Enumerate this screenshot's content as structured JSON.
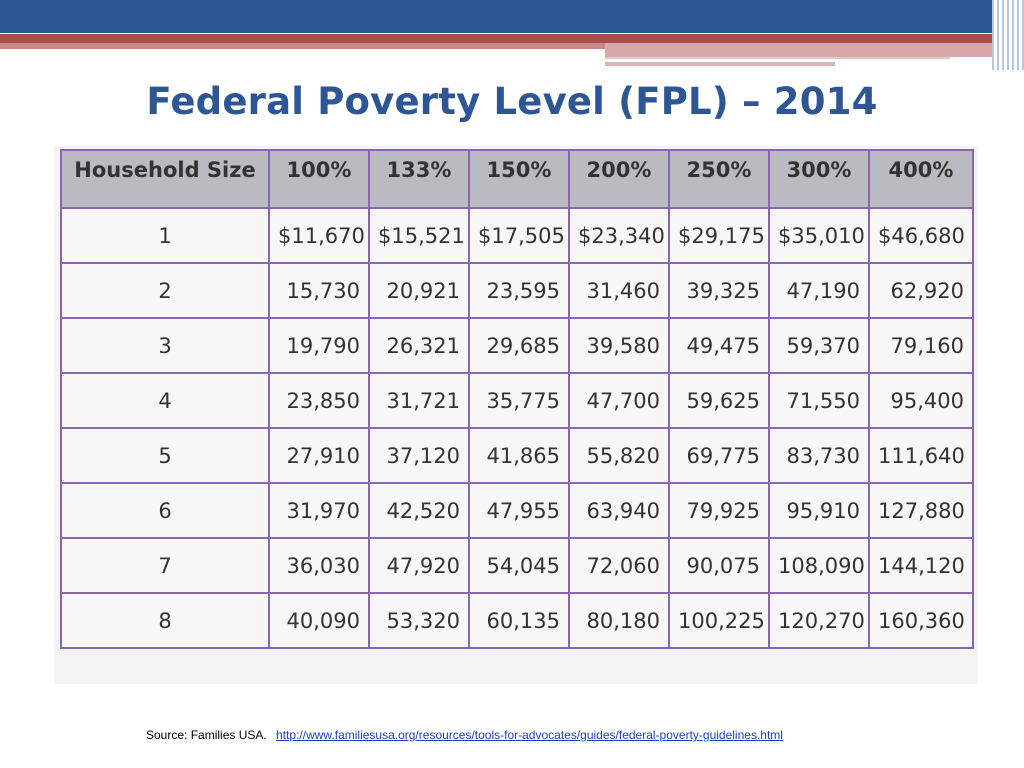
{
  "title": "Federal Poverty Level (FPL) – 2014",
  "table": {
    "headers": [
      "Household Size",
      "100%",
      "133%",
      "150%",
      "200%",
      "250%",
      "300%",
      "400%"
    ],
    "rows": [
      [
        "1",
        "$11,670",
        "$15,521",
        "$17,505",
        "$23,340",
        "$29,175",
        "$35,010",
        "$46,680"
      ],
      [
        "2",
        "15,730",
        "20,921",
        "23,595",
        "31,460",
        "39,325",
        "47,190",
        "62,920"
      ],
      [
        "3",
        "19,790",
        "26,321",
        "29,685",
        "39,580",
        "49,475",
        "59,370",
        "79,160"
      ],
      [
        "4",
        "23,850",
        "31,721",
        "35,775",
        "47,700",
        "59,625",
        "71,550",
        "95,400"
      ],
      [
        "5",
        "27,910",
        "37,120",
        "41,865",
        "55,820",
        "69,775",
        "83,730",
        "111,640"
      ],
      [
        "6",
        "31,970",
        "42,520",
        "47,955",
        "63,940",
        "79,925",
        "95,910",
        "127,880"
      ],
      [
        "7",
        "36,030",
        "47,920",
        "54,045",
        "72,060",
        "90,075",
        "108,090",
        "144,120"
      ],
      [
        "8",
        "40,090",
        "53,320",
        "60,135",
        "80,180",
        "100,225",
        "120,270",
        "160,360"
      ]
    ]
  },
  "source": {
    "label": "Source: Families USA.",
    "link_text": "http://www.familiesusa.org/resources/tools-for-advocates/guides/federal-poverty-guidelines.html"
  },
  "colors": {
    "title": "#2e5694",
    "header_bg": "#babac1",
    "border": "#8a65b0",
    "banner_blue": "#2e5694",
    "banner_red": "#a84e4e",
    "link": "#1f3fbf"
  }
}
